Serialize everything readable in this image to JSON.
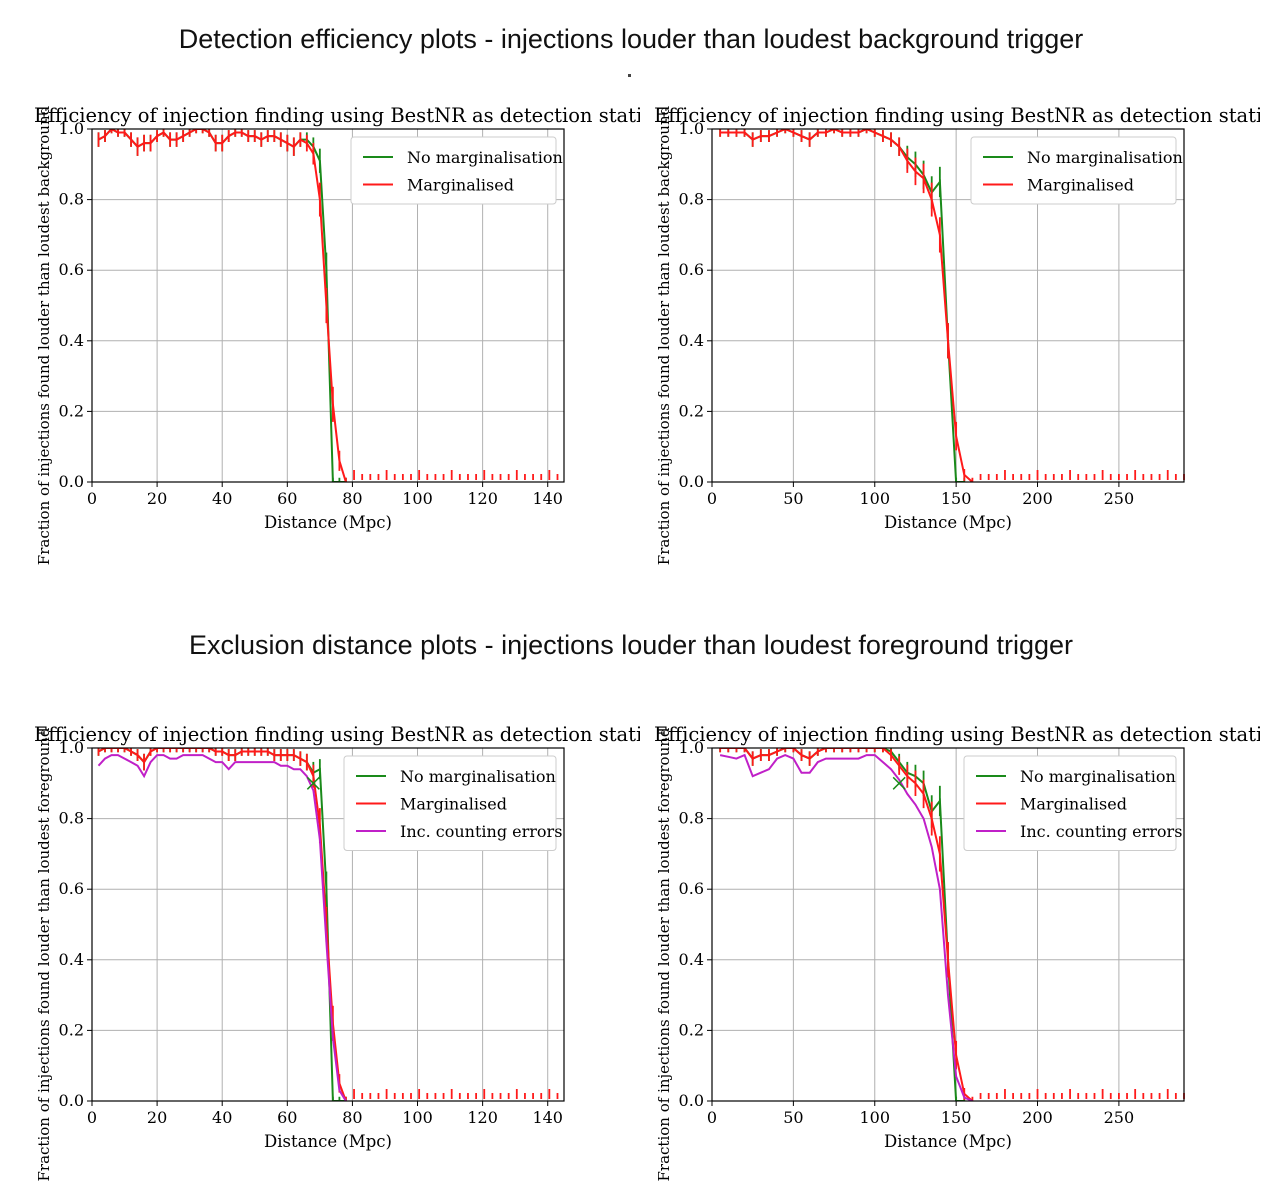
{
  "headings": {
    "top": "Detection efficiency plots - injections louder than loudest background trigger",
    "bottom": "Exclusion distance plots - injections louder than loudest foreground trigger"
  },
  "colors": {
    "no_marg": "#1a8a1a",
    "marg": "#ff1a1a",
    "counting": "#c020c8",
    "grid": "#b0b0b0"
  },
  "chart_data": [
    {
      "type": "line",
      "title": "Efficiency of injection finding using BestNR as detection statistic",
      "xlabel": "Distance (Mpc)",
      "ylabel": "Fraction of injections found louder than loudest background",
      "xlim": [
        0,
        145
      ],
      "ylim": [
        0,
        1.0
      ],
      "xticks": [
        0,
        20,
        40,
        60,
        80,
        100,
        120,
        140
      ],
      "yticks": [
        0.0,
        0.2,
        0.4,
        0.6,
        0.8,
        1.0
      ],
      "grid": true,
      "legend_position": "top-right",
      "series": [
        {
          "name": "No marginalisation",
          "color": "#1a8a1a",
          "x": [
            2,
            4,
            6,
            8,
            10,
            12,
            14,
            16,
            18,
            20,
            22,
            24,
            26,
            28,
            30,
            32,
            34,
            36,
            38,
            40,
            42,
            44,
            46,
            48,
            50,
            52,
            54,
            56,
            58,
            60,
            62,
            64,
            66,
            68,
            70,
            72,
            74,
            76,
            78
          ],
          "y": [
            0.97,
            0.98,
            1.0,
            0.99,
            0.99,
            0.97,
            0.95,
            0.96,
            0.96,
            0.98,
            0.99,
            0.97,
            0.97,
            0.98,
            0.99,
            1.0,
            1.0,
            0.99,
            0.96,
            0.96,
            0.98,
            0.99,
            0.99,
            0.98,
            0.98,
            0.97,
            0.98,
            0.98,
            0.97,
            0.96,
            0.95,
            0.97,
            0.97,
            0.95,
            0.91,
            0.6,
            0.0,
            0.0,
            0.0
          ]
        },
        {
          "name": "Marginalised",
          "color": "#ff1a1a",
          "x": [
            2,
            4,
            6,
            8,
            10,
            12,
            14,
            16,
            18,
            20,
            22,
            24,
            26,
            28,
            30,
            32,
            34,
            36,
            38,
            40,
            42,
            44,
            46,
            48,
            50,
            52,
            54,
            56,
            58,
            60,
            62,
            64,
            66,
            68,
            70,
            72,
            74,
            76,
            78
          ],
          "y": [
            0.97,
            0.98,
            1.0,
            0.99,
            0.99,
            0.97,
            0.95,
            0.96,
            0.96,
            0.98,
            0.99,
            0.97,
            0.97,
            0.98,
            0.99,
            1.0,
            1.0,
            0.99,
            0.96,
            0.96,
            0.98,
            0.99,
            0.99,
            0.98,
            0.98,
            0.97,
            0.98,
            0.98,
            0.97,
            0.96,
            0.95,
            0.97,
            0.96,
            0.93,
            0.8,
            0.5,
            0.22,
            0.06,
            0.0
          ]
        }
      ]
    },
    {
      "type": "line",
      "title": "Efficiency of injection finding using BestNR as detection statistic",
      "xlabel": "Distance (Mpc)",
      "ylabel": "Fraction of injections found louder than loudest background",
      "xlim": [
        0,
        290
      ],
      "ylim": [
        0,
        1.0
      ],
      "xticks": [
        0,
        50,
        100,
        150,
        200,
        250
      ],
      "yticks": [
        0.0,
        0.2,
        0.4,
        0.6,
        0.8,
        1.0
      ],
      "grid": true,
      "legend_position": "top-right",
      "series": [
        {
          "name": "No marginalisation",
          "color": "#1a8a1a",
          "x": [
            5,
            10,
            15,
            20,
            25,
            30,
            35,
            40,
            45,
            50,
            55,
            60,
            65,
            70,
            75,
            80,
            85,
            90,
            95,
            100,
            105,
            110,
            115,
            120,
            125,
            130,
            135,
            140,
            145,
            150,
            155
          ],
          "y": [
            0.99,
            0.99,
            0.99,
            0.99,
            0.97,
            0.98,
            0.98,
            0.99,
            1.0,
            0.99,
            0.98,
            0.97,
            0.99,
            0.99,
            1.0,
            0.99,
            0.99,
            0.99,
            1.0,
            0.99,
            0.98,
            0.97,
            0.95,
            0.92,
            0.9,
            0.87,
            0.82,
            0.85,
            0.4,
            0.0,
            0.0
          ]
        },
        {
          "name": "Marginalised",
          "color": "#ff1a1a",
          "x": [
            5,
            10,
            15,
            20,
            25,
            30,
            35,
            40,
            45,
            50,
            55,
            60,
            65,
            70,
            75,
            80,
            85,
            90,
            95,
            100,
            105,
            110,
            115,
            120,
            125,
            130,
            135,
            140,
            145,
            150,
            155,
            160
          ],
          "y": [
            0.99,
            0.99,
            0.99,
            0.99,
            0.97,
            0.98,
            0.98,
            0.99,
            1.0,
            0.99,
            0.98,
            0.97,
            0.99,
            0.99,
            1.0,
            0.99,
            0.99,
            0.99,
            1.0,
            0.99,
            0.98,
            0.97,
            0.95,
            0.91,
            0.88,
            0.86,
            0.8,
            0.7,
            0.4,
            0.13,
            0.02,
            0.0
          ]
        }
      ]
    },
    {
      "type": "line",
      "title": "Efficiency of injection finding using BestNR as detection statistic",
      "xlabel": "Distance (Mpc)",
      "ylabel": "Fraction of injections found louder than loudest foreground",
      "xlim": [
        0,
        145
      ],
      "ylim": [
        0,
        1.0
      ],
      "xticks": [
        0,
        20,
        40,
        60,
        80,
        100,
        120,
        140
      ],
      "yticks": [
        0.0,
        0.2,
        0.4,
        0.6,
        0.8,
        1.0
      ],
      "grid": true,
      "legend_position": "top-right",
      "series": [
        {
          "name": "No marginalisation",
          "color": "#1a8a1a",
          "x": [
            2,
            4,
            6,
            8,
            10,
            12,
            14,
            16,
            18,
            20,
            22,
            24,
            26,
            28,
            30,
            32,
            34,
            36,
            38,
            40,
            42,
            44,
            46,
            48,
            50,
            52,
            54,
            56,
            58,
            60,
            62,
            64,
            66,
            68,
            70,
            72,
            74,
            76,
            78
          ],
          "y": [
            0.99,
            1.0,
            1.0,
            1.0,
            1.0,
            0.99,
            0.98,
            0.96,
            0.99,
            1.0,
            1.0,
            1.0,
            1.0,
            1.0,
            1.0,
            1.0,
            1.0,
            1.0,
            0.99,
            0.99,
            0.98,
            0.98,
            0.99,
            0.99,
            0.99,
            0.99,
            0.99,
            0.98,
            0.98,
            0.98,
            0.98,
            0.97,
            0.96,
            0.93,
            0.94,
            0.6,
            0.0,
            0.0,
            0.0
          ]
        },
        {
          "name": "Marginalised",
          "color": "#ff1a1a",
          "x": [
            2,
            4,
            6,
            8,
            10,
            12,
            14,
            16,
            18,
            20,
            22,
            24,
            26,
            28,
            30,
            32,
            34,
            36,
            38,
            40,
            42,
            44,
            46,
            48,
            50,
            52,
            54,
            56,
            58,
            60,
            62,
            64,
            66,
            68,
            70,
            72,
            74,
            76,
            78
          ],
          "y": [
            0.99,
            1.0,
            1.0,
            1.0,
            1.0,
            0.99,
            0.98,
            0.96,
            0.99,
            1.0,
            1.0,
            1.0,
            1.0,
            1.0,
            1.0,
            1.0,
            1.0,
            1.0,
            0.99,
            0.99,
            0.98,
            0.98,
            0.99,
            0.99,
            0.99,
            0.99,
            0.99,
            0.98,
            0.98,
            0.98,
            0.98,
            0.97,
            0.96,
            0.92,
            0.78,
            0.5,
            0.22,
            0.05,
            0.0
          ]
        },
        {
          "name": "Inc. counting errors",
          "color": "#c020c8",
          "x": [
            2,
            4,
            6,
            8,
            10,
            12,
            14,
            16,
            18,
            20,
            22,
            24,
            26,
            28,
            30,
            32,
            34,
            36,
            38,
            40,
            42,
            44,
            46,
            48,
            50,
            52,
            54,
            56,
            58,
            60,
            62,
            64,
            66,
            68,
            70,
            72,
            74,
            76,
            78
          ],
          "y": [
            0.95,
            0.97,
            0.98,
            0.98,
            0.97,
            0.96,
            0.95,
            0.92,
            0.96,
            0.98,
            0.98,
            0.97,
            0.97,
            0.98,
            0.98,
            0.98,
            0.98,
            0.97,
            0.96,
            0.96,
            0.94,
            0.96,
            0.96,
            0.96,
            0.96,
            0.96,
            0.96,
            0.96,
            0.95,
            0.95,
            0.94,
            0.94,
            0.92,
            0.88,
            0.74,
            0.45,
            0.18,
            0.03,
            0.0
          ]
        }
      ],
      "annotations": [
        {
          "marker": "x",
          "x": 68,
          "y": 0.9,
          "color": "#1a8a1a"
        }
      ]
    },
    {
      "type": "line",
      "title": "Efficiency of injection finding using BestNR as detection statistic",
      "xlabel": "Distance (Mpc)",
      "ylabel": "Fraction of injections found louder than loudest foreground",
      "xlim": [
        0,
        290
      ],
      "ylim": [
        0,
        1.0
      ],
      "xticks": [
        0,
        50,
        100,
        150,
        200,
        250
      ],
      "yticks": [
        0.0,
        0.2,
        0.4,
        0.6,
        0.8,
        1.0
      ],
      "grid": true,
      "legend_position": "top-right",
      "series": [
        {
          "name": "No marginalisation",
          "color": "#1a8a1a",
          "x": [
            5,
            10,
            15,
            20,
            25,
            30,
            35,
            40,
            45,
            50,
            55,
            60,
            65,
            70,
            75,
            80,
            85,
            90,
            95,
            100,
            105,
            110,
            115,
            120,
            125,
            130,
            135,
            140,
            145,
            150,
            155
          ],
          "y": [
            1.0,
            1.0,
            1.0,
            1.0,
            0.97,
            0.98,
            0.98,
            0.99,
            1.0,
            1.0,
            0.98,
            0.97,
            0.99,
            1.0,
            1.0,
            1.0,
            1.0,
            1.0,
            1.0,
            1.0,
            1.0,
            0.99,
            0.96,
            0.93,
            0.92,
            0.9,
            0.82,
            0.85,
            0.4,
            0.0,
            0.0
          ]
        },
        {
          "name": "Marginalised",
          "color": "#ff1a1a",
          "x": [
            5,
            10,
            15,
            20,
            25,
            30,
            35,
            40,
            45,
            50,
            55,
            60,
            65,
            70,
            75,
            80,
            85,
            90,
            95,
            100,
            105,
            110,
            115,
            120,
            125,
            130,
            135,
            140,
            145,
            150,
            155,
            160
          ],
          "y": [
            1.0,
            1.0,
            1.0,
            1.0,
            0.97,
            0.98,
            0.98,
            0.99,
            1.0,
            1.0,
            0.98,
            0.97,
            0.99,
            1.0,
            1.0,
            1.0,
            1.0,
            1.0,
            1.0,
            1.0,
            1.0,
            0.98,
            0.95,
            0.92,
            0.9,
            0.87,
            0.8,
            0.7,
            0.4,
            0.13,
            0.02,
            0.0
          ]
        },
        {
          "name": "Inc. counting errors",
          "color": "#c020c8",
          "x": [
            5,
            10,
            15,
            20,
            25,
            30,
            35,
            40,
            45,
            50,
            55,
            60,
            65,
            70,
            75,
            80,
            85,
            90,
            95,
            100,
            105,
            110,
            115,
            120,
            125,
            130,
            135,
            140,
            145,
            150,
            155,
            160
          ],
          "y": [
            0.98,
            0.975,
            0.97,
            0.98,
            0.92,
            0.93,
            0.94,
            0.97,
            0.98,
            0.97,
            0.93,
            0.93,
            0.96,
            0.97,
            0.97,
            0.97,
            0.97,
            0.97,
            0.98,
            0.98,
            0.96,
            0.94,
            0.91,
            0.87,
            0.84,
            0.8,
            0.72,
            0.6,
            0.3,
            0.07,
            0.01,
            0.0
          ]
        }
      ],
      "annotations": [
        {
          "marker": "x",
          "x": 115,
          "y": 0.9,
          "color": "#1a8a1a"
        }
      ]
    }
  ]
}
